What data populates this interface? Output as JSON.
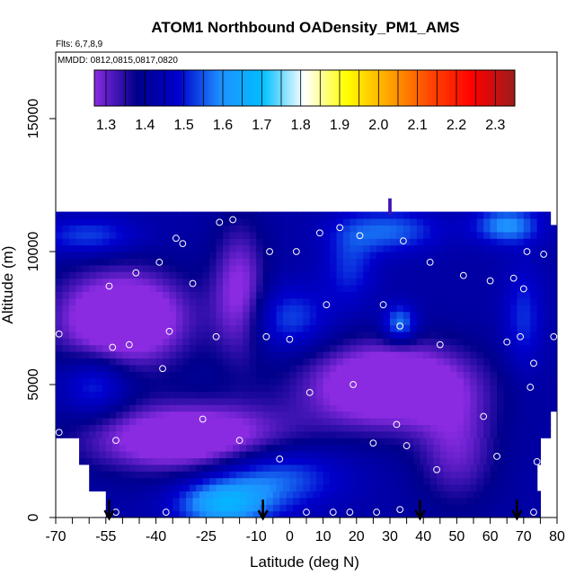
{
  "chart_data": {
    "type": "heatmap",
    "title": "ATOM1 Northbound OADensity_PM1_AMS",
    "flights_note": "Flts: 6,7,8,9",
    "dates_note": "MMDD: 0812,0815,0817,0820",
    "xlabel": "Latitude (deg N)",
    "ylabel": "Altitude (m)",
    "xlim": [
      -70,
      80
    ],
    "ylim": [
      0,
      17500
    ],
    "x_ticks": [
      -70,
      -55,
      -40,
      -25,
      -10,
      0,
      10,
      20,
      30,
      40,
      50,
      60,
      70,
      80
    ],
    "x_tick_labels": [
      "-70",
      "-55",
      "-40",
      "-25",
      "-10",
      "0",
      "10",
      "20",
      "30",
      "40",
      "50",
      "60",
      "70",
      "80"
    ],
    "x_minor_ticks": [
      -65,
      -60,
      -50,
      -45,
      -35,
      -30,
      -20,
      -15,
      -5,
      5,
      15,
      25,
      35,
      45,
      55,
      65,
      75
    ],
    "y_ticks": [
      0,
      5000,
      10000,
      15000
    ],
    "y_tick_labels": [
      "0",
      "5000",
      "10000",
      "15000"
    ],
    "colorbar": {
      "min": 1.27,
      "max": 2.35,
      "ticks": [
        1.3,
        1.4,
        1.5,
        1.6,
        1.7,
        1.8,
        1.9,
        2.0,
        2.1,
        2.2,
        2.3
      ],
      "tick_labels": [
        "1.3",
        "1.4",
        "1.5",
        "1.6",
        "1.7",
        "1.8",
        "1.9",
        "2.0",
        "2.1",
        "2.2",
        "2.3"
      ],
      "colors": [
        "#8a2be2",
        "#00008b",
        "#0000cd",
        "#1e90ff",
        "#00bfff",
        "#ffffff",
        "#ffff00",
        "#ffa500",
        "#ff4500",
        "#ff0000",
        "#9b1c1c"
      ]
    },
    "arrows_lat": [
      -54,
      -8,
      39,
      68
    ],
    "points": [
      {
        "lat": -69,
        "alt": 3200
      },
      {
        "lat": -69,
        "alt": 6900
      },
      {
        "lat": -54,
        "alt": 8700
      },
      {
        "lat": -53,
        "alt": 6400
      },
      {
        "lat": -52,
        "alt": 2900
      },
      {
        "lat": -52,
        "alt": 200
      },
      {
        "lat": -48,
        "alt": 6500
      },
      {
        "lat": -46,
        "alt": 9200
      },
      {
        "lat": -39,
        "alt": 9600
      },
      {
        "lat": -38,
        "alt": 5600
      },
      {
        "lat": -37,
        "alt": 200
      },
      {
        "lat": -36,
        "alt": 7000
      },
      {
        "lat": -34,
        "alt": 10500
      },
      {
        "lat": -32,
        "alt": 10300
      },
      {
        "lat": -29,
        "alt": 8800
      },
      {
        "lat": -26,
        "alt": 3700
      },
      {
        "lat": -22,
        "alt": 6800
      },
      {
        "lat": -21,
        "alt": 11100
      },
      {
        "lat": -17,
        "alt": 11200
      },
      {
        "lat": -15,
        "alt": 2900
      },
      {
        "lat": -7,
        "alt": 6800
      },
      {
        "lat": -6,
        "alt": 10000
      },
      {
        "lat": -3,
        "alt": 2200
      },
      {
        "lat": 0,
        "alt": 6700
      },
      {
        "lat": 2,
        "alt": 10000
      },
      {
        "lat": 5,
        "alt": 200
      },
      {
        "lat": 6,
        "alt": 4700
      },
      {
        "lat": 9,
        "alt": 10700
      },
      {
        "lat": 11,
        "alt": 8000
      },
      {
        "lat": 13,
        "alt": 200
      },
      {
        "lat": 15,
        "alt": 10900
      },
      {
        "lat": 18,
        "alt": 200
      },
      {
        "lat": 19,
        "alt": 5000
      },
      {
        "lat": 21,
        "alt": 10600
      },
      {
        "lat": 25,
        "alt": 2800
      },
      {
        "lat": 26,
        "alt": 200
      },
      {
        "lat": 28,
        "alt": 8000
      },
      {
        "lat": 32,
        "alt": 3500
      },
      {
        "lat": 33,
        "alt": 7200
      },
      {
        "lat": 33,
        "alt": 300
      },
      {
        "lat": 34,
        "alt": 10400
      },
      {
        "lat": 35,
        "alt": 2700
      },
      {
        "lat": 42,
        "alt": 9600
      },
      {
        "lat": 44,
        "alt": 1800
      },
      {
        "lat": 45,
        "alt": 6500
      },
      {
        "lat": 52,
        "alt": 9100
      },
      {
        "lat": 58,
        "alt": 3800
      },
      {
        "lat": 60,
        "alt": 8900
      },
      {
        "lat": 62,
        "alt": 2300
      },
      {
        "lat": 65,
        "alt": 6600
      },
      {
        "lat": 67,
        "alt": 9000
      },
      {
        "lat": 69,
        "alt": 6800
      },
      {
        "lat": 70,
        "alt": 8600
      },
      {
        "lat": 71,
        "alt": 10000
      },
      {
        "lat": 72,
        "alt": 4900
      },
      {
        "lat": 73,
        "alt": 5800
      },
      {
        "lat": 73,
        "alt": 200
      },
      {
        "lat": 74,
        "alt": 2100
      },
      {
        "lat": 76,
        "alt": 9900
      },
      {
        "lat": 79,
        "alt": 6800
      }
    ]
  }
}
